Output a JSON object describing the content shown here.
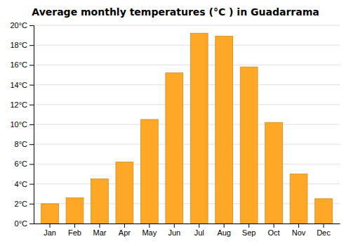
{
  "chart_data": {
    "type": "bar",
    "title": "Average monthly temperatures (°C ) in Guadarrama",
    "categories": [
      "Jan",
      "Feb",
      "Mar",
      "Apr",
      "May",
      "Jun",
      "Jul",
      "Aug",
      "Sep",
      "Oct",
      "Nov",
      "Dec"
    ],
    "values": [
      2.0,
      2.6,
      4.5,
      6.2,
      10.5,
      15.2,
      19.2,
      18.9,
      15.8,
      10.2,
      5.0,
      2.5
    ],
    "color": "#FFA726",
    "ylim": [
      0,
      20
    ],
    "yticks": [
      {
        "value": 0,
        "label": "0°C"
      },
      {
        "value": 2,
        "label": "2°C"
      },
      {
        "value": 4,
        "label": "4°C"
      },
      {
        "value": 6,
        "label": "6°C"
      },
      {
        "value": 8,
        "label": "8°C"
      },
      {
        "value": 10,
        "label": "10°C"
      },
      {
        "value": 12,
        "label": "12°C"
      },
      {
        "value": 14,
        "label": "14°C"
      },
      {
        "value": 16,
        "label": "16°C"
      },
      {
        "value": 18,
        "label": "18°C"
      },
      {
        "value": 20,
        "label": "20°C"
      }
    ],
    "grid": true
  }
}
